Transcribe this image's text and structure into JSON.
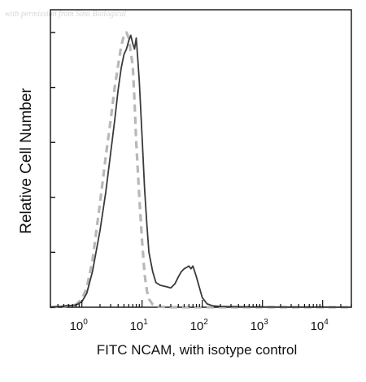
{
  "watermark": "with permission from Sino Biological",
  "chart_data": {
    "type": "line",
    "title": "",
    "xlabel": "FITC NCAM, with isotype control",
    "ylabel": "Relative Cell Number",
    "xscale": "log",
    "xlim": [
      0.3,
      30000
    ],
    "ylim": [
      0,
      1
    ],
    "grid": false,
    "legend": "none",
    "x_ticks": [
      {
        "base": "10",
        "exp": "0",
        "value": 1
      },
      {
        "base": "10",
        "exp": "1",
        "value": 10
      },
      {
        "base": "10",
        "exp": "2",
        "value": 100
      },
      {
        "base": "10",
        "exp": "3",
        "value": 1000
      },
      {
        "base": "10",
        "exp": "4",
        "value": 10000
      }
    ],
    "y_tick_count": 5,
    "series": [
      {
        "style": "solid",
        "color": "#3a3a3a",
        "x": [
          0.3,
          0.5,
          0.8,
          1.0,
          1.2,
          1.5,
          2.0,
          2.5,
          3.0,
          3.5,
          4.0,
          4.5,
          5.0,
          5.5,
          6.0,
          6.5,
          7.0,
          7.5,
          8.0,
          8.5,
          9.0,
          10,
          11,
          12,
          13,
          15,
          17,
          20,
          25,
          30,
          35,
          40,
          45,
          50,
          55,
          60,
          65,
          70,
          75,
          80,
          90,
          100,
          120,
          150,
          200,
          300,
          500,
          1000,
          3000,
          10000,
          30000
        ],
        "y": [
          0.0,
          0.004,
          0.008,
          0.02,
          0.05,
          0.13,
          0.28,
          0.42,
          0.56,
          0.68,
          0.79,
          0.87,
          0.92,
          0.94,
          0.97,
          0.99,
          0.96,
          0.94,
          0.98,
          0.9,
          0.82,
          0.62,
          0.43,
          0.3,
          0.2,
          0.13,
          0.09,
          0.08,
          0.075,
          0.07,
          0.085,
          0.11,
          0.13,
          0.14,
          0.145,
          0.15,
          0.14,
          0.15,
          0.13,
          0.11,
          0.07,
          0.035,
          0.012,
          0.005,
          0.003,
          0.002,
          0.0015,
          0.001,
          0.0005,
          0.0005,
          0.0
        ]
      },
      {
        "style": "dashed",
        "color": "#b8b8b8",
        "x": [
          0.3,
          0.5,
          0.8,
          1.0,
          1.2,
          1.5,
          2.0,
          2.5,
          3.0,
          3.5,
          4.0,
          4.5,
          5.0,
          5.5,
          6.0,
          6.5,
          7.0,
          7.5,
          8.0,
          9.0,
          10,
          11,
          12,
          13,
          15,
          17,
          20,
          25,
          30,
          50,
          100,
          1000,
          30000
        ],
        "y": [
          0.0,
          0.003,
          0.01,
          0.03,
          0.07,
          0.17,
          0.38,
          0.55,
          0.68,
          0.8,
          0.88,
          0.95,
          0.99,
          1.0,
          0.98,
          0.93,
          0.88,
          0.75,
          0.6,
          0.4,
          0.24,
          0.12,
          0.06,
          0.03,
          0.01,
          0.004,
          0.002,
          0.0,
          0.0,
          0.0,
          0.0,
          0.0,
          0.0
        ]
      }
    ]
  }
}
